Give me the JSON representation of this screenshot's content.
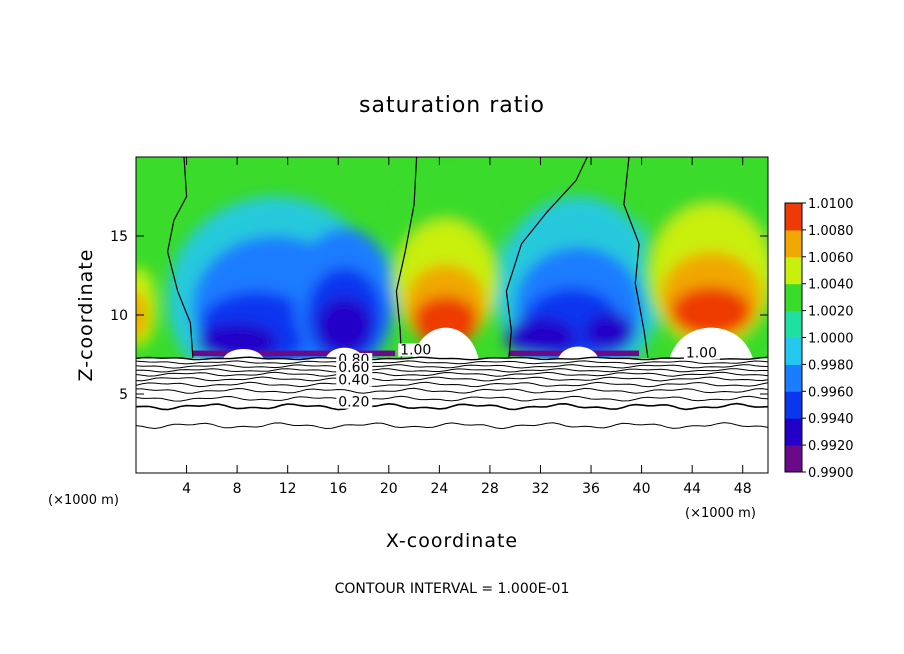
{
  "chart_data": {
    "type": "heatmap",
    "title": "saturation ratio",
    "xlabel": "X-coordinate",
    "ylabel": "Z-coordinate",
    "x_unit_label": "(×1000 m)",
    "y_unit_label": "(×1000 m)",
    "xlim": [
      0,
      50
    ],
    "ylim": [
      0,
      20
    ],
    "x_ticks": [
      4,
      8,
      12,
      16,
      20,
      24,
      28,
      32,
      36,
      40,
      44,
      48
    ],
    "y_ticks": [
      5,
      10,
      15
    ],
    "colorbar": {
      "levels": [
        "0.9900",
        "0.9920",
        "0.9940",
        "0.9960",
        "0.9980",
        "1.0000",
        "1.0020",
        "1.0040",
        "1.0060",
        "1.0080",
        "1.0100"
      ],
      "colors": [
        "#6a0a8a",
        "#2200c8",
        "#0a36f0",
        "#1a7cff",
        "#22c8ee",
        "#1fe0a0",
        "#3adb2b",
        "#c9ef0c",
        "#f0a800",
        "#ee3a06",
        "#f08080"
      ]
    },
    "footer": "CONTOUR INTERVAL = 1.000E-01",
    "contour_labels": [
      {
        "text": "1.00",
        "x": 20.9,
        "z": 7.5
      },
      {
        "text": "0.80",
        "x": 16.0,
        "z": 6.9
      },
      {
        "text": "0.60",
        "x": 16.0,
        "z": 6.4
      },
      {
        "text": "0.40",
        "x": 16.0,
        "z": 5.6
      },
      {
        "text": "0.20",
        "x": 16.0,
        "z": 4.2
      },
      {
        "text": "1.00",
        "x": 43.5,
        "z": 7.3
      }
    ],
    "grid": false,
    "legend": "right"
  }
}
